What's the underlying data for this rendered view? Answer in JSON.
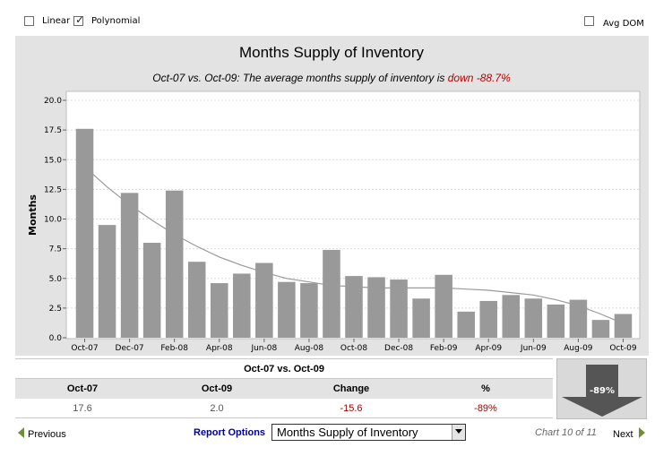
{
  "options": {
    "linear_label": "Linear",
    "linear_checked": false,
    "polynomial_label": "Polynomial",
    "polynomial_checked": true,
    "avg_dom_label": "Avg DOM",
    "avg_dom_checked": false
  },
  "chart_data": {
    "type": "bar",
    "title": "Months Supply of Inventory",
    "subtitle_prefix": "Oct-07 vs. Oct-09: The average months supply of inventory is ",
    "subtitle_highlight": "down -88.7%",
    "ylabel": "Months",
    "ylim": [
      0,
      20
    ],
    "yticks": [
      "0.0",
      "2.5",
      "5.0",
      "7.5",
      "10.0",
      "12.5",
      "15.0",
      "17.5",
      "20.0"
    ],
    "categories": [
      "Oct-07",
      "Nov-07",
      "Dec-07",
      "Jan-08",
      "Feb-08",
      "Mar-08",
      "Apr-08",
      "May-08",
      "Jun-08",
      "Jul-08",
      "Aug-08",
      "Sep-08",
      "Oct-08",
      "Nov-08",
      "Dec-08",
      "Jan-09",
      "Feb-09",
      "Mar-09",
      "Apr-09",
      "May-09",
      "Jun-09",
      "Jul-09",
      "Aug-09",
      "Sep-09",
      "Oct-09"
    ],
    "xtick_labels": [
      "Oct-07",
      "Dec-07",
      "Feb-08",
      "Apr-08",
      "Jun-08",
      "Aug-08",
      "Oct-08",
      "Dec-08",
      "Feb-09",
      "Apr-09",
      "Jun-09",
      "Aug-09",
      "Oct-09"
    ],
    "values": [
      17.6,
      9.5,
      12.2,
      8.0,
      12.4,
      6.4,
      4.6,
      5.4,
      6.3,
      4.7,
      4.6,
      7.4,
      5.2,
      5.1,
      4.9,
      3.3,
      5.3,
      2.2,
      3.1,
      3.6,
      3.3,
      2.8,
      3.2,
      1.5,
      2.0
    ],
    "trend": [
      14.4,
      12.7,
      11.2,
      9.9,
      8.7,
      7.7,
      6.8,
      6.1,
      5.5,
      5.0,
      4.7,
      4.4,
      4.3,
      4.2,
      4.2,
      4.2,
      4.2,
      4.1,
      4.0,
      3.8,
      3.6,
      3.2,
      2.7,
      2.0,
      1.2
    ],
    "bar_color": "#999999",
    "trend_color": "#9a9a9a",
    "grid": true
  },
  "table": {
    "heading": "Oct-07 vs. Oct-09",
    "headers": [
      "Oct-07",
      "Oct-09",
      "Change",
      "%"
    ],
    "values": [
      "17.6",
      "2.0",
      "-15.6",
      "-89%"
    ],
    "negative_color": "#990000"
  },
  "indicator": {
    "label": "-89%",
    "direction": "down"
  },
  "footer": {
    "previous_label": "Previous",
    "report_options_label": "Report Options",
    "selected_report": "Months Supply of Inventory",
    "chart_position": "Chart 10 of 11",
    "next_label": "Next",
    "link_color": "#00009c"
  }
}
